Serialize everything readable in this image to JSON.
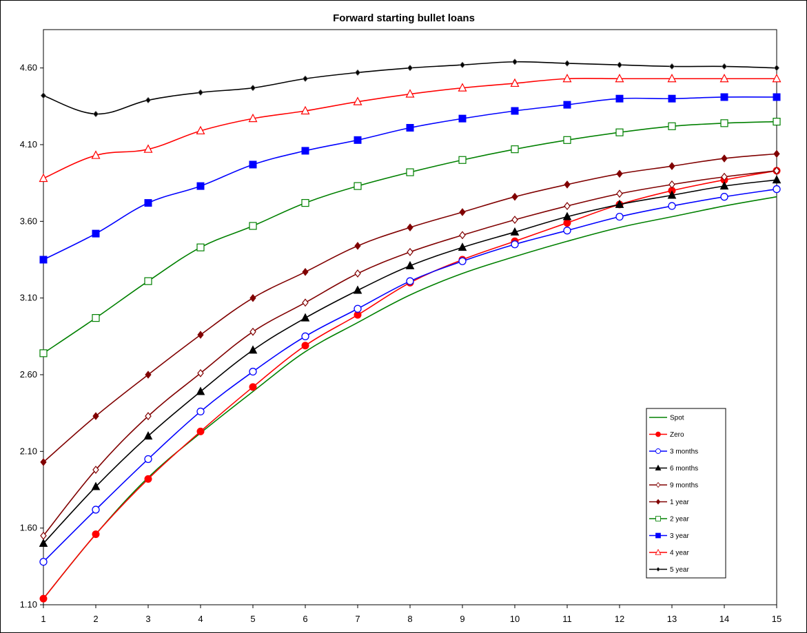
{
  "chart_data": {
    "type": "line",
    "title": "Forward starting bullet loans",
    "xlabel": "",
    "ylabel": "",
    "x": [
      1,
      2,
      3,
      4,
      5,
      6,
      7,
      8,
      9,
      10,
      11,
      12,
      13,
      14,
      15
    ],
    "xlim": [
      1,
      15
    ],
    "ylim": [
      1.1,
      4.85
    ],
    "yticks": [
      "1.10",
      "1.60",
      "2.10",
      "2.60",
      "3.10",
      "3.60",
      "4.10",
      "4.60"
    ],
    "grid": false,
    "legend_position": "bottom-right",
    "series": [
      {
        "name": "Spot",
        "color": "#008000",
        "marker": "none",
        "values": [
          1.14,
          1.56,
          1.93,
          2.22,
          2.49,
          2.75,
          2.94,
          3.12,
          3.26,
          3.37,
          3.47,
          3.56,
          3.63,
          3.7,
          3.76
        ]
      },
      {
        "name": "Zero",
        "color": "#ff0000",
        "marker": "filled-circle",
        "values": [
          1.14,
          1.56,
          1.92,
          2.23,
          2.52,
          2.79,
          2.99,
          3.2,
          3.35,
          3.47,
          3.59,
          3.71,
          3.8,
          3.87,
          3.93
        ]
      },
      {
        "name": "3 months",
        "color": "#0000ff",
        "marker": "hollow-circle",
        "values": [
          1.38,
          1.72,
          2.05,
          2.36,
          2.62,
          2.85,
          3.03,
          3.21,
          3.34,
          3.45,
          3.54,
          3.63,
          3.7,
          3.76,
          3.81
        ]
      },
      {
        "name": "6 months",
        "color": "#000000",
        "marker": "filled-triangle",
        "values": [
          1.5,
          1.87,
          2.2,
          2.49,
          2.76,
          2.97,
          3.15,
          3.31,
          3.43,
          3.53,
          3.63,
          3.71,
          3.77,
          3.83,
          3.87
        ]
      },
      {
        "name": "9  months",
        "color": "#800000",
        "marker": "hollow-diamond",
        "values": [
          1.55,
          1.98,
          2.33,
          2.61,
          2.88,
          3.07,
          3.26,
          3.4,
          3.51,
          3.61,
          3.7,
          3.78,
          3.84,
          3.89,
          3.93
        ]
      },
      {
        "name": "1 year",
        "color": "#800000",
        "marker": "filled-diamond",
        "values": [
          2.03,
          2.33,
          2.6,
          2.86,
          3.1,
          3.27,
          3.44,
          3.56,
          3.66,
          3.76,
          3.84,
          3.91,
          3.96,
          4.01,
          4.04
        ]
      },
      {
        "name": "2 year",
        "color": "#008000",
        "marker": "hollow-square",
        "values": [
          2.74,
          2.97,
          3.21,
          3.43,
          3.57,
          3.72,
          3.83,
          3.92,
          4.0,
          4.07,
          4.13,
          4.18,
          4.22,
          4.24,
          4.25
        ]
      },
      {
        "name": "3 year",
        "color": "#0000ff",
        "marker": "filled-square",
        "values": [
          3.35,
          3.52,
          3.72,
          3.83,
          3.97,
          4.06,
          4.13,
          4.21,
          4.27,
          4.32,
          4.36,
          4.4,
          4.4,
          4.41,
          4.41
        ]
      },
      {
        "name": "4 year",
        "color": "#ff0000",
        "marker": "hollow-triangle",
        "values": [
          3.88,
          4.03,
          4.07,
          4.19,
          4.27,
          4.32,
          4.38,
          4.43,
          4.47,
          4.5,
          4.53,
          4.53,
          4.53,
          4.53,
          4.53
        ]
      },
      {
        "name": "5 year",
        "color": "#000000",
        "marker": "small-diamond",
        "values": [
          4.42,
          4.3,
          4.39,
          4.44,
          4.47,
          4.53,
          4.57,
          4.6,
          4.62,
          4.64,
          4.63,
          4.62,
          4.61,
          4.61,
          4.6
        ]
      }
    ]
  }
}
